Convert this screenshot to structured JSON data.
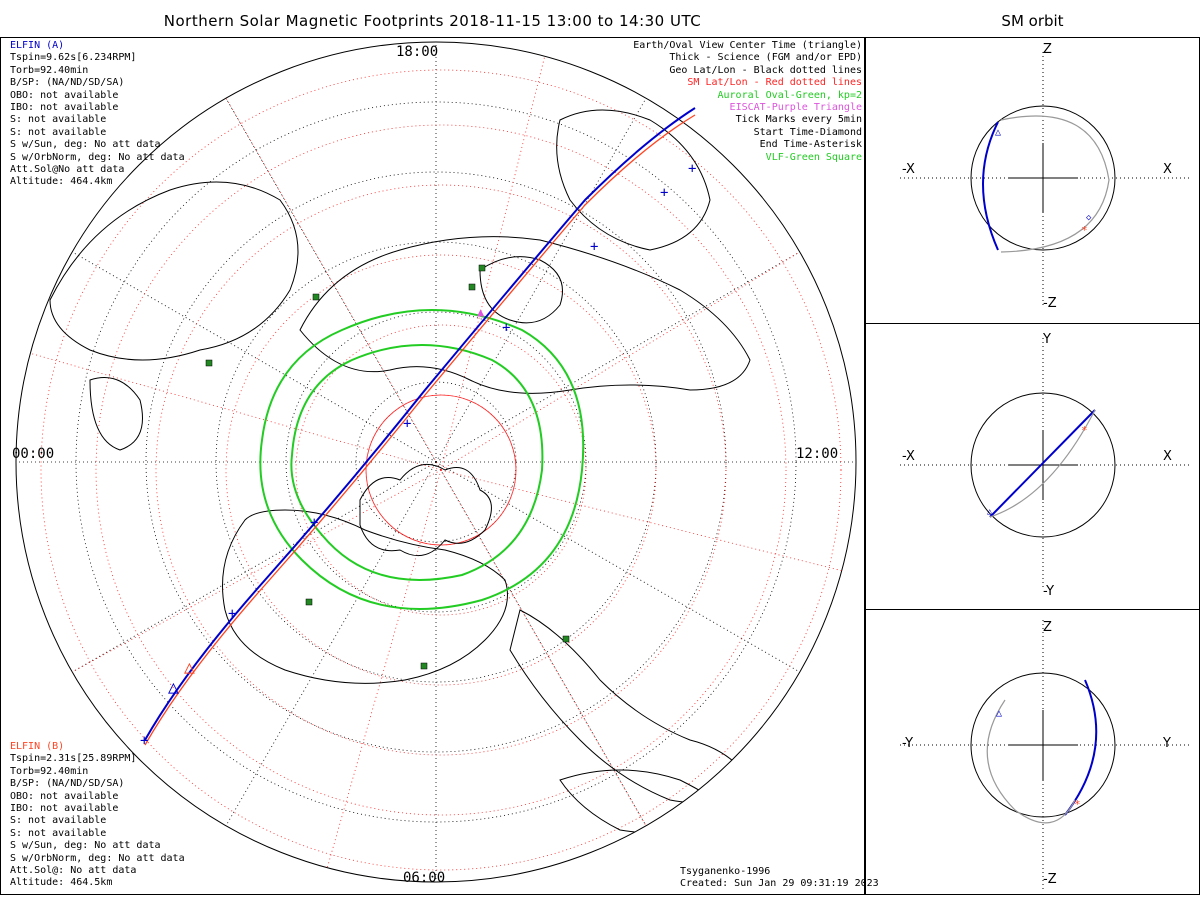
{
  "title": "Northern Solar Magnetic Footprints 2018-11-15 13:00 to 14:30 UTC",
  "orbit_title": "SM orbit",
  "colors": {
    "elfin_a": "#0000cc",
    "elfin_b": "#ff4422",
    "sm_grid": "#ff2222",
    "auroral_oval": "#22cc22",
    "eiscat": "#dd55dd",
    "vlf": "#228822",
    "geo_grid": "#000000",
    "orbit_other": "#999999"
  },
  "elfin_a": {
    "name": "ELFIN (A)",
    "lines": [
      "Tspin=9.62s[6.234RPM]",
      "Torb=92.40min",
      "B/SP: (NA/ND/SD/SA)",
      "OBO: not available",
      "IBO: not available",
      "S: not available",
      "S: not available",
      "S w/Sun, deg: No att data",
      "S w/OrbNorm, deg: No att data",
      "Att.Sol@No att data",
      "Altitude: 464.4km"
    ]
  },
  "elfin_b": {
    "name": "ELFIN (B)",
    "lines": [
      "Tspin=2.31s[25.89RPM]",
      "Torb=92.40min",
      "B/SP: (NA/ND/SD/SA)",
      "OBO: not available",
      "IBO: not available",
      "S: not available",
      "S: not available",
      "S w/Sun, deg: No att data",
      "S w/OrbNorm, deg: No att data",
      "Att.Sol@: No att data",
      "Altitude: 464.5km"
    ]
  },
  "legend": [
    {
      "text": "Earth/Oval View Center Time (triangle)",
      "color": "#000000"
    },
    {
      "text": "Thick - Science (FGM and/or EPD)",
      "color": "#000000"
    },
    {
      "text": "Geo Lat/Lon - Black dotted lines",
      "color": "#000000"
    },
    {
      "text": "SM Lat/Lon - Red dotted lines",
      "color": "#ff2222"
    },
    {
      "text": "Auroral Oval-Green, kp=2",
      "color": "#22cc22"
    },
    {
      "text": "EISCAT-Purple Triangle",
      "color": "#dd55dd"
    },
    {
      "text": "Tick Marks every 5min",
      "color": "#000000"
    },
    {
      "text": "Start Time-Diamond",
      "color": "#000000"
    },
    {
      "text": "End Time-Asterisk",
      "color": "#000000"
    },
    {
      "text": "VLF-Green Square",
      "color": "#22cc22"
    }
  ],
  "mlt_labels": {
    "top": "18:00",
    "left": "00:00",
    "right": "12:00",
    "bottom": "06:00"
  },
  "credit": {
    "model": "Tsyganenko-1996",
    "created": "Created: Sun Jan 29 09:31:19 2023"
  },
  "panels": [
    {
      "up": "Z",
      "down": "-Z",
      "left": "-X",
      "right": "X"
    },
    {
      "up": "Y",
      "down": "-Y",
      "left": "-X",
      "right": "X"
    },
    {
      "up": "Z",
      "down": "-Z",
      "left": "-Y",
      "right": "Y"
    }
  ]
}
